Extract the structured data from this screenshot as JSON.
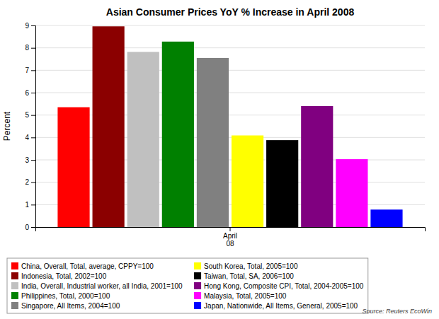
{
  "chart_data": {
    "type": "bar",
    "title": "Asian Consumer Prices YoY % Increase in April 2008",
    "ylabel": "Percent",
    "source": "Source: Reuters EcoWin",
    "categories": [
      "April\n08"
    ],
    "series": [
      {
        "name": "China, Overall, Total, average, CPPY=100",
        "color": "#ff0000",
        "values": [
          5.35
        ]
      },
      {
        "name": "Indonesia, Total, 2002=100",
        "color": "#8b0000",
        "values": [
          8.96
        ]
      },
      {
        "name": "India, Overall, Industrial worker, all India, 2001=100",
        "color": "#c0c0c0",
        "values": [
          7.82
        ]
      },
      {
        "name": "Philippines, Total, 2000=100",
        "color": "#008000",
        "values": [
          8.28
        ]
      },
      {
        "name": "Singapore, All Items, 2004=100",
        "color": "#808080",
        "values": [
          7.55
        ]
      },
      {
        "name": "South Korea, Total, 2005=100",
        "color": "#ffff00",
        "values": [
          4.09
        ]
      },
      {
        "name": "Taiwan, Total, SA, 2006=100",
        "color": "#000000",
        "values": [
          3.88
        ]
      },
      {
        "name": "Hong Kong, Composite CPI, Total, 2004-2005=100",
        "color": "#800080",
        "values": [
          5.4
        ]
      },
      {
        "name": "Malaysia, Total, 2005=100",
        "color": "#ff00ff",
        "values": [
          3.03
        ]
      },
      {
        "name": "Japan, Nationwide, All Items, General, 2005=100",
        "color": "#0000ff",
        "values": [
          0.78
        ]
      }
    ],
    "ylim": [
      0,
      9
    ],
    "yticks": [
      0,
      1,
      2,
      3,
      4,
      5,
      6,
      7,
      8,
      9
    ],
    "grid": true,
    "legend": "bottom"
  }
}
